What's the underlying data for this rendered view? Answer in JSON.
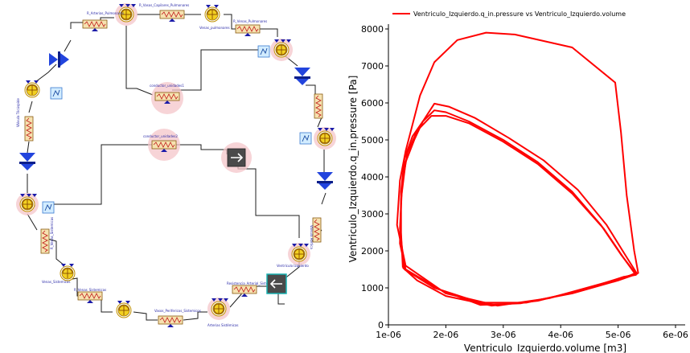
{
  "diagram": {
    "labels": {
      "valvula_arterial_pulmonar": "Válvula Arterial Pulmonar",
      "r_arterias_pulmonares": "R_Arterias_Pulmonares",
      "r_vasos_capilares_pulmonares": "R_Vasos_Capilares_Pulmonares",
      "venas_pulmonares": "Venas_pulmonares",
      "r_venas_pulmonares": "R_Venas_Pulmonares",
      "auricula_izquierda": "Aurícula Izquierda",
      "ventriculo_izquierdo": "Ventrículo Izquierdo",
      "valvula_aortica": "Válvula Aórtica",
      "arterias_sistemicas": "Arterias Sistémicas",
      "resistencia_arterial_sistemica": "Resistencia_Arterial_Sistemica",
      "vasos_perifericos_sistemicos": "Vasos_Perifericos_Sistemicos",
      "venas_sistemicas": "Venas_Sistemicas",
      "r_venas_sistemicas": "R_Venas_Sistemicas",
      "auricula_derecha": "Aurícula Derecha",
      "ventriculo_derecho": "Ventrículo Derecho",
      "valvula_tricuspide": "Válvula Tricúspide",
      "conductor_unidades1": "conductor_unidades1",
      "conductor_unidades2": "conductor_unidades2"
    }
  },
  "chart_data": {
    "type": "line",
    "legend": "Ventriculo_Izquierdo.q_in.pressure vs Ventriculo_Izquierdo.volume",
    "legend_placement": "top",
    "xlabel": "Ventriculo_Izquierdo.volume [m3]",
    "ylabel": "Ventriculo_Izquierdo.q_in.pressure [Pa]",
    "xlim": [
      1e-06,
      6e-06
    ],
    "ylim": [
      0,
      8000
    ],
    "x_ticks": [
      "1e-06",
      "2e-06",
      "3e-06",
      "4e-06",
      "5e-06",
      "6e-06"
    ],
    "y_ticks": [
      "0",
      "1000",
      "2000",
      "3000",
      "4000",
      "5000",
      "6000",
      "7000",
      "8000"
    ],
    "grid": false,
    "color": "#ff0000",
    "series": [
      {
        "name": "Ventriculo_Izquierdo.q_in.pressure vs Ventriculo_Izquierdo.volume",
        "loops": [
          [
            [
              1.25e-06,
              1550
            ],
            [
              1.22e-06,
              2500
            ],
            [
              1.22e-06,
              3600
            ],
            [
              1.28e-06,
              4500
            ],
            [
              1.42e-06,
              5100
            ],
            [
              1.6e-06,
              5500
            ],
            [
              1.8e-06,
              5800
            ],
            [
              2e-06,
              5750
            ],
            [
              2.4e-06,
              5500
            ],
            [
              3e-06,
              5000
            ],
            [
              3.6e-06,
              4400
            ],
            [
              4.2e-06,
              3600
            ],
            [
              4.7e-06,
              2700
            ],
            [
              5.05e-06,
              1900
            ],
            [
              5.3e-06,
              1400
            ],
            [
              5.2e-06,
              1330
            ],
            [
              4.5e-06,
              1000
            ],
            [
              3.6e-06,
              650
            ],
            [
              2.8e-06,
              520
            ],
            [
              2e-06,
              780
            ],
            [
              1.5e-06,
              1200
            ],
            [
              1.25e-06,
              1550
            ]
          ],
          [
            [
              1.3e-06,
              1500
            ],
            [
              1.2e-06,
              2200
            ],
            [
              1.22e-06,
              3400
            ],
            [
              1.3e-06,
              4400
            ],
            [
              1.45e-06,
              5000
            ],
            [
              1.6e-06,
              5500
            ],
            [
              1.8e-06,
              5980
            ],
            [
              2.05e-06,
              5900
            ],
            [
              2.5e-06,
              5600
            ],
            [
              3.1e-06,
              5050
            ],
            [
              3.7e-06,
              4450
            ],
            [
              4.3e-06,
              3650
            ],
            [
              4.8e-06,
              2700
            ],
            [
              5.12e-06,
              1900
            ],
            [
              5.33e-06,
              1380
            ],
            [
              5e-06,
              1200
            ],
            [
              4.2e-06,
              850
            ],
            [
              3.3e-06,
              580
            ],
            [
              2.6e-06,
              540
            ],
            [
              1.9e-06,
              950
            ],
            [
              1.3e-06,
              1500
            ]
          ],
          [
            [
              1.3e-06,
              1600
            ],
            [
              1.15e-06,
              2700
            ],
            [
              1.2e-06,
              3900
            ],
            [
              1.3e-06,
              4700
            ],
            [
              1.55e-06,
              6200
            ],
            [
              1.8e-06,
              7100
            ],
            [
              2.2e-06,
              7700
            ],
            [
              2.7e-06,
              7900
            ],
            [
              3.2e-06,
              7850
            ],
            [
              4.2e-06,
              7500
            ],
            [
              4.95e-06,
              6550
            ],
            [
              5.05e-06,
              5200
            ],
            [
              5.15e-06,
              3500
            ],
            [
              5.28e-06,
              2000
            ],
            [
              5.35e-06,
              1400
            ],
            [
              4.8e-06,
              1150
            ],
            [
              3.8e-06,
              720
            ],
            [
              2.9e-06,
              520
            ],
            [
              2e-06,
              850
            ],
            [
              1.3e-06,
              1600
            ]
          ],
          [
            [
              1.28e-06,
              1500
            ],
            [
              1.2e-06,
              2600
            ],
            [
              1.24e-06,
              3800
            ],
            [
              1.33e-06,
              4650
            ],
            [
              1.5e-06,
              5250
            ],
            [
              1.75e-06,
              5650
            ],
            [
              2e-06,
              5650
            ],
            [
              2.4e-06,
              5450
            ],
            [
              3e-06,
              4950
            ],
            [
              3.6e-06,
              4350
            ],
            [
              4.2e-06,
              3550
            ],
            [
              4.75e-06,
              2600
            ],
            [
              5.1e-06,
              1800
            ],
            [
              5.31e-06,
              1350
            ],
            [
              5.1e-06,
              1300
            ],
            [
              4.3e-06,
              900
            ],
            [
              3.4e-06,
              600
            ],
            [
              2.6e-06,
              600
            ],
            [
              1.8e-06,
              1000
            ],
            [
              1.28e-06,
              1500
            ]
          ]
        ]
      }
    ]
  }
}
